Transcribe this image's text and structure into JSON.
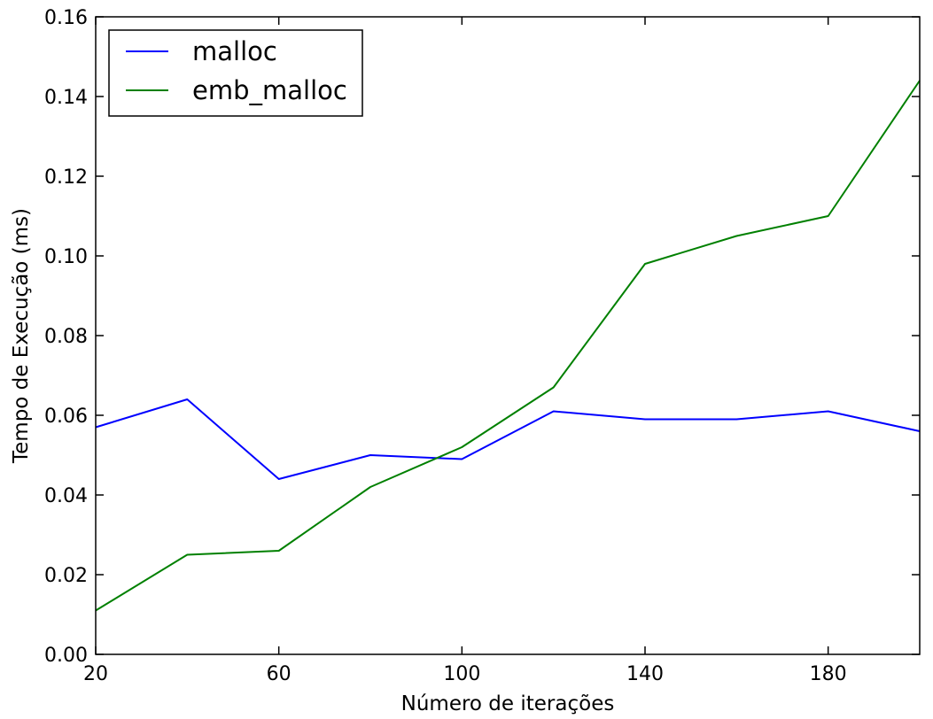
{
  "chart_data": {
    "type": "line",
    "title": "",
    "xlabel": "Número de iterações",
    "ylabel": "Tempo de Execução (ms)",
    "x": [
      20,
      40,
      60,
      80,
      100,
      120,
      140,
      160,
      180,
      200
    ],
    "xlim": [
      20,
      200
    ],
    "ylim": [
      0,
      0.16
    ],
    "xticks": [
      20,
      60,
      100,
      140,
      180
    ],
    "xtick_labels": [
      "20",
      "60",
      "100",
      "140",
      "180"
    ],
    "yticks": [
      0,
      0.02,
      0.04,
      0.06,
      0.08,
      0.1,
      0.12,
      0.14,
      0.16
    ],
    "ytick_labels": [
      "0.00",
      "0.02",
      "0.04",
      "0.06",
      "0.08",
      "0.10",
      "0.12",
      "0.14",
      "0.16"
    ],
    "grid": false,
    "legend_position": "top-left",
    "series": [
      {
        "name": "malloc",
        "color": "#0000ff",
        "values": [
          0.057,
          0.064,
          0.044,
          0.05,
          0.049,
          0.061,
          0.059,
          0.059,
          0.061,
          0.056
        ]
      },
      {
        "name": "emb_malloc",
        "color": "#008000",
        "values": [
          0.011,
          0.025,
          0.026,
          0.042,
          0.052,
          0.067,
          0.098,
          0.105,
          0.11,
          0.144
        ]
      }
    ]
  }
}
